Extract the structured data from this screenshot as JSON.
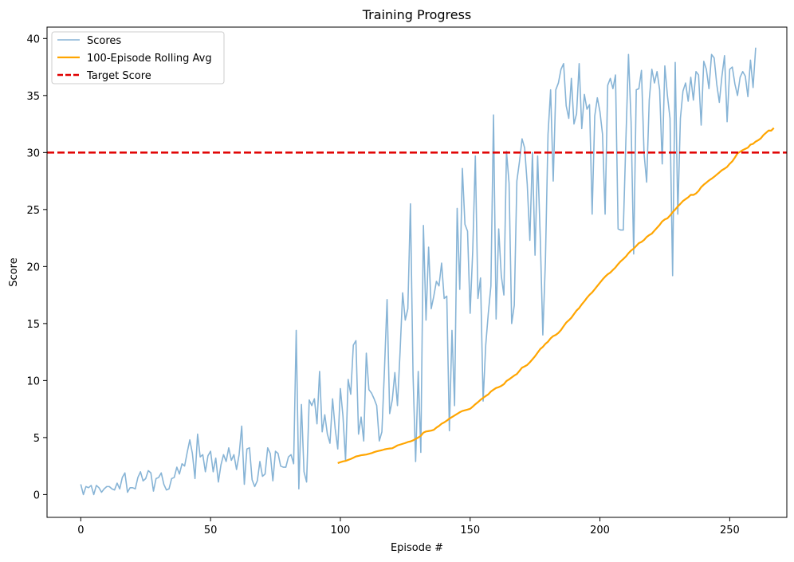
{
  "chart_data": {
    "type": "line",
    "title": "Training Progress",
    "xlabel": "Episode #",
    "ylabel": "Score",
    "xlim": [
      -13,
      272
    ],
    "ylim": [
      -2,
      41
    ],
    "x_ticks": [
      0,
      50,
      100,
      150,
      200,
      250
    ],
    "y_ticks": [
      0,
      5,
      10,
      15,
      20,
      25,
      30,
      35,
      40
    ],
    "grid": false,
    "legend": {
      "position": "top-left",
      "entries": [
        "Scores",
        "100-Episode Rolling Avg",
        "Target Score"
      ]
    },
    "colors": {
      "scores": "#87b4d6",
      "rolling_avg": "#ffa500",
      "target": "#e00000"
    },
    "target_score": 30,
    "series": [
      {
        "name": "Scores",
        "style": "solid-light-blue",
        "x_start": 0,
        "values": [
          0.9,
          0.0,
          0.7,
          0.6,
          0.8,
          0.0,
          0.8,
          0.6,
          0.2,
          0.5,
          0.7,
          0.7,
          0.5,
          0.4,
          1.0,
          0.5,
          1.5,
          1.9,
          0.2,
          0.6,
          0.6,
          0.5,
          1.5,
          2.0,
          1.2,
          1.4,
          2.1,
          1.9,
          0.3,
          1.4,
          1.5,
          1.9,
          0.9,
          0.4,
          0.5,
          1.4,
          1.5,
          2.4,
          1.8,
          2.7,
          2.5,
          3.7,
          4.8,
          3.6,
          1.4,
          5.3,
          3.3,
          3.5,
          2.0,
          3.4,
          3.8,
          2.0,
          3.2,
          1.1,
          2.6,
          3.5,
          2.9,
          4.1,
          3.0,
          3.5,
          2.2,
          3.5,
          6.0,
          0.9,
          4.0,
          4.1,
          1.3,
          0.7,
          1.2,
          2.9,
          1.6,
          1.8,
          4.1,
          3.6,
          1.2,
          3.8,
          3.6,
          2.5,
          2.4,
          2.4,
          3.3,
          3.5,
          2.7,
          14.4,
          0.5,
          7.9,
          2.0,
          1.1,
          8.3,
          7.8,
          8.4,
          6.2,
          10.8,
          5.5,
          7.0,
          5.3,
          4.5,
          8.4,
          5.8,
          4.0,
          9.3,
          6.9,
          3.0,
          10.1,
          8.8,
          13.1,
          13.5,
          5.3,
          6.8,
          4.7,
          12.4,
          9.2,
          8.9,
          8.4,
          7.8,
          4.7,
          5.5,
          11.0,
          17.1,
          7.1,
          8.3,
          10.7,
          7.8,
          12.5,
          17.7,
          15.3,
          16.3,
          25.5,
          10.5,
          2.9,
          10.8,
          3.7,
          23.6,
          15.3,
          21.7,
          16.3,
          17.4,
          18.7,
          18.3,
          20.3,
          17.2,
          17.4,
          5.6,
          14.4,
          7.8,
          25.1,
          18.0,
          28.6,
          23.7,
          23.1,
          15.9,
          21.4,
          29.7,
          17.2,
          19.0,
          8.2,
          13.1,
          15.9,
          18.3,
          33.3,
          15.4,
          23.3,
          19.2,
          17.5,
          30.1,
          27.3,
          15.0,
          16.6,
          27.5,
          29.2,
          31.2,
          30.4,
          27.2,
          22.3,
          30.0,
          21.0,
          29.7,
          22.6,
          14.0,
          20.5,
          31.6,
          35.5,
          27.5,
          35.5,
          36.1,
          37.3,
          37.8,
          34.1,
          33.0,
          36.5,
          32.5,
          33.4,
          37.8,
          32.1,
          35.1,
          33.8,
          34.2,
          24.6,
          33.2,
          34.8,
          33.6,
          31.6,
          24.6,
          35.9,
          36.5,
          35.6,
          36.8,
          23.3,
          23.2,
          23.2,
          31.1,
          38.6,
          32.7,
          21.1,
          35.5,
          35.6,
          37.2,
          29.9,
          27.4,
          34.6,
          37.3,
          36.1,
          37.1,
          35.5,
          29.0,
          37.6,
          35.0,
          33.0,
          19.2,
          37.9,
          24.6,
          33.0,
          35.4,
          36.1,
          34.5,
          36.6,
          34.6,
          37.1,
          36.8,
          32.4,
          38.0,
          37.3,
          35.6,
          38.6,
          38.3,
          36.0,
          34.4,
          36.7,
          38.5,
          32.7,
          37.3,
          37.5,
          36.0,
          35.0,
          36.6,
          37.1,
          36.7,
          34.9,
          38.1,
          35.7,
          39.2
        ]
      },
      {
        "name": "100-Episode Rolling Avg",
        "style": "solid-orange",
        "x_start": 99,
        "values": [
          2.76,
          2.84,
          2.91,
          2.95,
          3.04,
          3.12,
          3.23,
          3.34,
          3.39,
          3.45,
          3.48,
          3.51,
          3.57,
          3.63,
          3.72,
          3.79,
          3.84,
          3.89,
          3.96,
          4.01,
          4.04,
          4.06,
          4.18,
          4.31,
          4.38,
          4.45,
          4.52,
          4.61,
          4.66,
          4.75,
          4.88,
          5.0,
          5.15,
          5.43,
          5.53,
          5.57,
          5.61,
          5.68,
          5.87,
          6.02,
          6.21,
          6.33,
          6.48,
          6.66,
          6.8,
          6.94,
          7.08,
          7.22,
          7.33,
          7.39,
          7.45,
          7.52,
          7.71,
          7.92,
          8.1,
          8.31,
          8.48,
          8.64,
          8.79,
          9.04,
          9.2,
          9.35,
          9.42,
          9.53,
          9.68,
          9.96,
          10.1,
          10.27,
          10.44,
          10.57,
          10.85,
          11.13,
          11.24,
          11.37,
          11.6,
          11.86,
          12.13,
          12.45,
          12.76,
          12.95,
          13.22,
          13.41,
          13.7,
          13.9,
          14.0,
          14.18,
          14.43,
          14.76,
          15.08,
          15.28,
          15.51,
          15.83,
          16.14,
          16.36,
          16.68,
          16.95,
          17.26,
          17.52,
          17.73,
          18.01,
          18.3,
          18.58,
          18.86,
          19.11,
          19.32,
          19.47,
          19.7,
          19.92,
          20.21,
          20.46,
          20.66,
          20.88,
          21.17,
          21.4,
          21.57,
          21.81,
          22.05,
          22.16,
          22.33,
          22.59,
          22.76,
          22.89,
          23.15,
          23.4,
          23.65,
          23.96,
          24.13,
          24.23,
          24.47,
          24.76,
          25.0,
          25.27,
          25.5,
          25.75,
          25.91,
          26.07,
          26.29,
          26.28,
          26.41,
          26.63,
          26.96,
          27.18,
          27.36,
          27.55,
          27.7,
          27.87,
          28.06,
          28.25,
          28.45,
          28.58,
          28.74,
          29.01,
          29.23,
          29.56,
          29.93,
          30.06,
          30.21,
          30.32,
          30.43,
          30.69,
          30.76,
          30.96,
          31.08,
          31.25,
          31.53,
          31.73,
          31.93,
          31.92,
          32.15
        ]
      }
    ]
  }
}
